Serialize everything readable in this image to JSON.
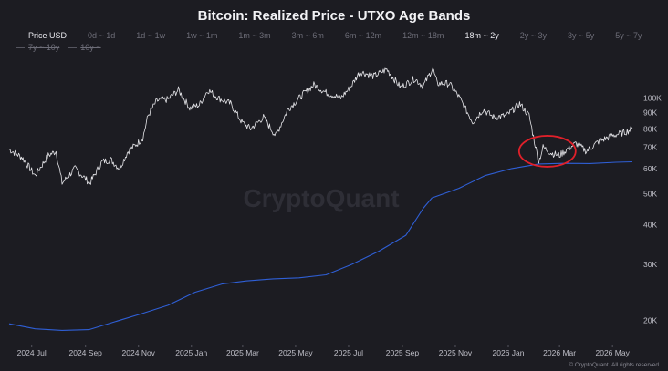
{
  "chart_data": {
    "type": "line",
    "title": "Bitcoin: Realized Price - UTXO Age Bands",
    "legend": [
      {
        "name": "Price USD",
        "enabled": true,
        "color": "#e6e6ea"
      },
      {
        "name": "0d ~ 1d",
        "enabled": false
      },
      {
        "name": "1d ~ 1w",
        "enabled": false
      },
      {
        "name": "1w ~ 1m",
        "enabled": false
      },
      {
        "name": "1m ~ 3m",
        "enabled": false
      },
      {
        "name": "3m ~ 6m",
        "enabled": false
      },
      {
        "name": "6m ~ 12m",
        "enabled": false
      },
      {
        "name": "12m ~ 18m",
        "enabled": false
      },
      {
        "name": "18m ~ 2y",
        "enabled": true,
        "color": "#2f5fd6"
      },
      {
        "name": "2y ~ 3y",
        "enabled": false
      },
      {
        "name": "3y ~ 5y",
        "enabled": false
      },
      {
        "name": "5y ~ 7y",
        "enabled": false
      },
      {
        "name": "7y ~ 10y",
        "enabled": false
      },
      {
        "name": "10y ~",
        "enabled": false
      }
    ],
    "x_ticks": [
      "2024 Jul",
      "2024 Sep",
      "2024 Nov",
      "2025 Jan",
      "2025 Mar",
      "2025 May",
      "2025 Jul",
      "2025 Sep",
      "2025 Nov",
      "2026 Jan",
      "2026 Mar",
      "2026 May"
    ],
    "y_ticks": [
      {
        "label": "100K",
        "value": 100000
      },
      {
        "label": "90K",
        "value": 90000
      },
      {
        "label": "80K",
        "value": 80000
      },
      {
        "label": "70K",
        "value": 70000
      },
      {
        "label": "60K",
        "value": 60000
      },
      {
        "label": "50K",
        "value": 50000
      },
      {
        "label": "40K",
        "value": 40000
      },
      {
        "label": "30K",
        "value": 30000
      },
      {
        "label": "20K",
        "value": 20000
      }
    ],
    "y_scale": "log",
    "ylim": [
      17000,
      135000
    ],
    "xlim": [
      "2024-06-05",
      "2026-05-25"
    ],
    "grid": false,
    "annotation": {
      "type": "circle",
      "color": "#e0202a",
      "date": "2026-02-15",
      "value": 68000
    },
    "series": [
      {
        "name": "Price USD",
        "color": "#e6e6ea",
        "points": [
          [
            "2024-06-05",
            69000
          ],
          [
            "2024-06-20",
            65000
          ],
          [
            "2024-07-05",
            57000
          ],
          [
            "2024-07-20",
            66000
          ],
          [
            "2024-07-29",
            68000
          ],
          [
            "2024-08-05",
            54000
          ],
          [
            "2024-08-20",
            60000
          ],
          [
            "2024-09-06",
            54000
          ],
          [
            "2024-09-20",
            63000
          ],
          [
            "2024-09-30",
            64000
          ],
          [
            "2024-10-10",
            60000
          ],
          [
            "2024-10-20",
            68000
          ],
          [
            "2024-10-31",
            72000
          ],
          [
            "2024-11-06",
            75000
          ],
          [
            "2024-11-12",
            88000
          ],
          [
            "2024-11-22",
            98000
          ],
          [
            "2024-12-05",
            99000
          ],
          [
            "2024-12-17",
            106000
          ],
          [
            "2024-12-30",
            93000
          ],
          [
            "2025-01-10",
            95000
          ],
          [
            "2025-01-20",
            106000
          ],
          [
            "2025-02-01",
            100000
          ],
          [
            "2025-02-15",
            96000
          ],
          [
            "2025-02-28",
            84000
          ],
          [
            "2025-03-10",
            80000
          ],
          [
            "2025-03-25",
            87000
          ],
          [
            "2025-04-08",
            76000
          ],
          [
            "2025-04-22",
            92000
          ],
          [
            "2025-05-10",
            103000
          ],
          [
            "2025-05-22",
            110000
          ],
          [
            "2025-06-05",
            104000
          ],
          [
            "2025-06-22",
            100000
          ],
          [
            "2025-07-03",
            108000
          ],
          [
            "2025-07-14",
            121000
          ],
          [
            "2025-07-30",
            117000
          ],
          [
            "2025-08-14",
            123000
          ],
          [
            "2025-08-30",
            108000
          ],
          [
            "2025-09-15",
            115000
          ],
          [
            "2025-09-25",
            109000
          ],
          [
            "2025-10-06",
            124000
          ],
          [
            "2025-10-11",
            111000
          ],
          [
            "2025-10-25",
            111000
          ],
          [
            "2025-11-05",
            101000
          ],
          [
            "2025-11-21",
            84000
          ],
          [
            "2025-12-03",
            92000
          ],
          [
            "2025-12-15",
            87000
          ],
          [
            "2025-12-30",
            88000
          ],
          [
            "2026-01-14",
            96000
          ],
          [
            "2026-01-25",
            88000
          ],
          [
            "2026-02-05",
            63000
          ],
          [
            "2026-02-10",
            70000
          ],
          [
            "2026-02-20",
            67000
          ],
          [
            "2026-03-01",
            66000
          ],
          [
            "2026-03-10",
            69000
          ],
          [
            "2026-03-20",
            72000
          ],
          [
            "2026-04-01",
            68000
          ],
          [
            "2026-04-15",
            73000
          ],
          [
            "2026-04-30",
            76000
          ],
          [
            "2026-05-15",
            78000
          ],
          [
            "2026-05-24",
            80000
          ]
        ]
      },
      {
        "name": "18m ~ 2y",
        "color": "#2f5fd6",
        "points": [
          [
            "2024-06-05",
            19500
          ],
          [
            "2024-07-05",
            18800
          ],
          [
            "2024-08-05",
            18600
          ],
          [
            "2024-09-05",
            18700
          ],
          [
            "2024-10-05",
            19800
          ],
          [
            "2024-11-05",
            21000
          ],
          [
            "2024-12-05",
            22300
          ],
          [
            "2025-01-05",
            24500
          ],
          [
            "2025-02-05",
            26000
          ],
          [
            "2025-03-05",
            26600
          ],
          [
            "2025-04-05",
            27000
          ],
          [
            "2025-05-05",
            27200
          ],
          [
            "2025-06-05",
            27800
          ],
          [
            "2025-07-05",
            30000
          ],
          [
            "2025-08-05",
            33000
          ],
          [
            "2025-09-05",
            37000
          ],
          [
            "2025-09-25",
            45000
          ],
          [
            "2025-10-05",
            48500
          ],
          [
            "2025-11-05",
            52000
          ],
          [
            "2025-12-05",
            57000
          ],
          [
            "2026-01-05",
            60000
          ],
          [
            "2026-02-05",
            62000
          ],
          [
            "2026-03-05",
            62300
          ],
          [
            "2026-04-05",
            62200
          ],
          [
            "2026-05-05",
            62800
          ],
          [
            "2026-05-24",
            63000
          ]
        ]
      }
    ],
    "watermark": "CryptoQuant",
    "copyright": "© CryptoQuant. All rights reserved"
  }
}
